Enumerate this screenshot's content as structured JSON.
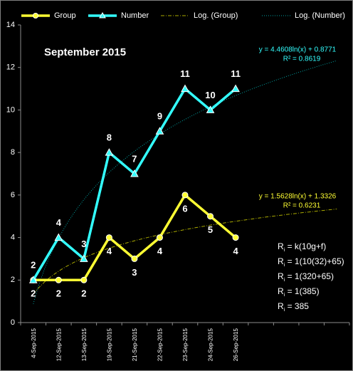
{
  "chart_data": {
    "type": "line",
    "title": "September 2015",
    "categories": [
      "4-Sep-2015",
      "12-Sep-2015",
      "13-Sep-2015",
      "19-Sep-2015",
      "21-Sep-2015",
      "22-Sep-2015",
      "23-Sep-2015",
      "24-Sep-2015",
      "26-Sep-2015",
      null,
      null,
      null,
      null
    ],
    "series": [
      {
        "name": "Group",
        "color": "#ffff33",
        "marker": "circle",
        "label_side": "below",
        "values": [
          2,
          2,
          2,
          4,
          3,
          4,
          6,
          5,
          4,
          null,
          null,
          null,
          null
        ]
      },
      {
        "name": "Number",
        "color": "#33ffff",
        "marker": "triangle",
        "label_side": "above",
        "values": [
          2,
          4,
          3,
          8,
          7,
          9,
          11,
          10,
          11,
          null,
          null,
          null,
          null
        ]
      }
    ],
    "trendlines": [
      {
        "name": "Log. (Group)",
        "color": "#a8a800",
        "equation": {
          "a": 1.5628,
          "b": 1.3326,
          "label": "y = 1.5628ln(x) + 1.3326"
        },
        "r2": {
          "value": 0.6231,
          "label": "R² = 0.6231"
        }
      },
      {
        "name": "Log. (Number)",
        "color": "#00a0a0",
        "equation": {
          "a": 4.4608,
          "b": 0.8771,
          "label": "y = 4.4608ln(x) + 0.8771"
        },
        "r2": {
          "value": 0.8619,
          "label": "R² = 0.8619"
        }
      }
    ],
    "annotations": [
      {
        "symbol": "R",
        "subscript": "i",
        "text": " = k(10g+f)"
      },
      {
        "symbol": "R",
        "subscript": "i",
        "text": " = 1(10(32)+65)"
      },
      {
        "symbol": "R",
        "subscript": "i",
        "text": " = 1(320+65)"
      },
      {
        "symbol": "R",
        "subscript": "i",
        "text": " = 1(385)"
      },
      {
        "symbol": "R",
        "subscript": "i",
        "text": " = 385"
      }
    ],
    "ylim": [
      0,
      14
    ],
    "yticks": [
      0,
      2,
      4,
      6,
      8,
      10,
      12,
      14
    ],
    "grid": false,
    "legend": "top"
  }
}
